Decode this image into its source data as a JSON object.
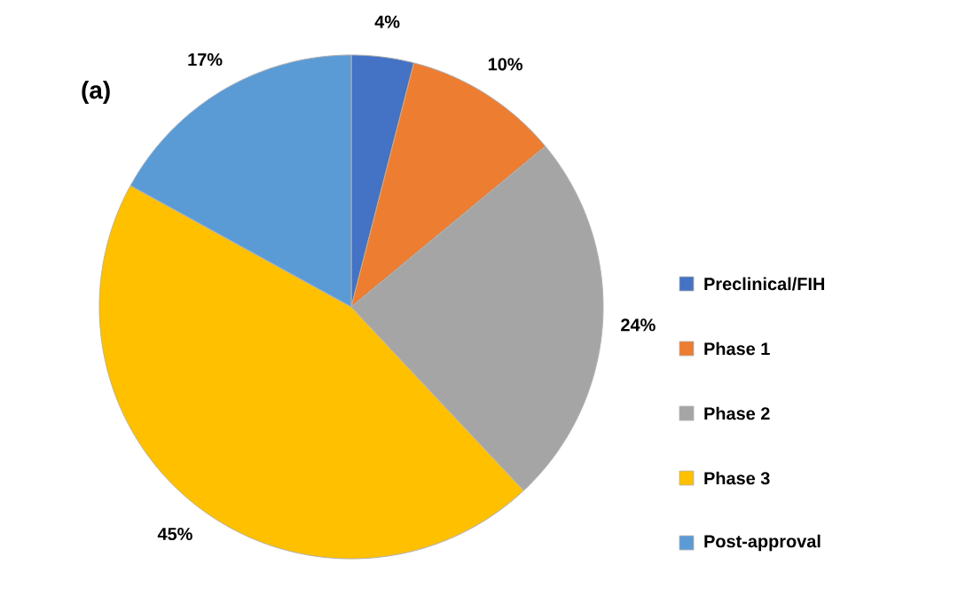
{
  "chart_data": {
    "type": "pie",
    "title": "(a)",
    "categories": [
      "Preclinical/FIH",
      "Phase 1",
      "Phase 2",
      "Phase 3",
      "Post-approval"
    ],
    "values": [
      4,
      10,
      24,
      45,
      17
    ],
    "value_labels": [
      "4%",
      "10%",
      "24%",
      "45%",
      "17%"
    ],
    "colors": [
      "#4472c4",
      "#ed7d31",
      "#a5a5a5",
      "#ffc000",
      "#5b9bd5"
    ],
    "legend": "right"
  }
}
